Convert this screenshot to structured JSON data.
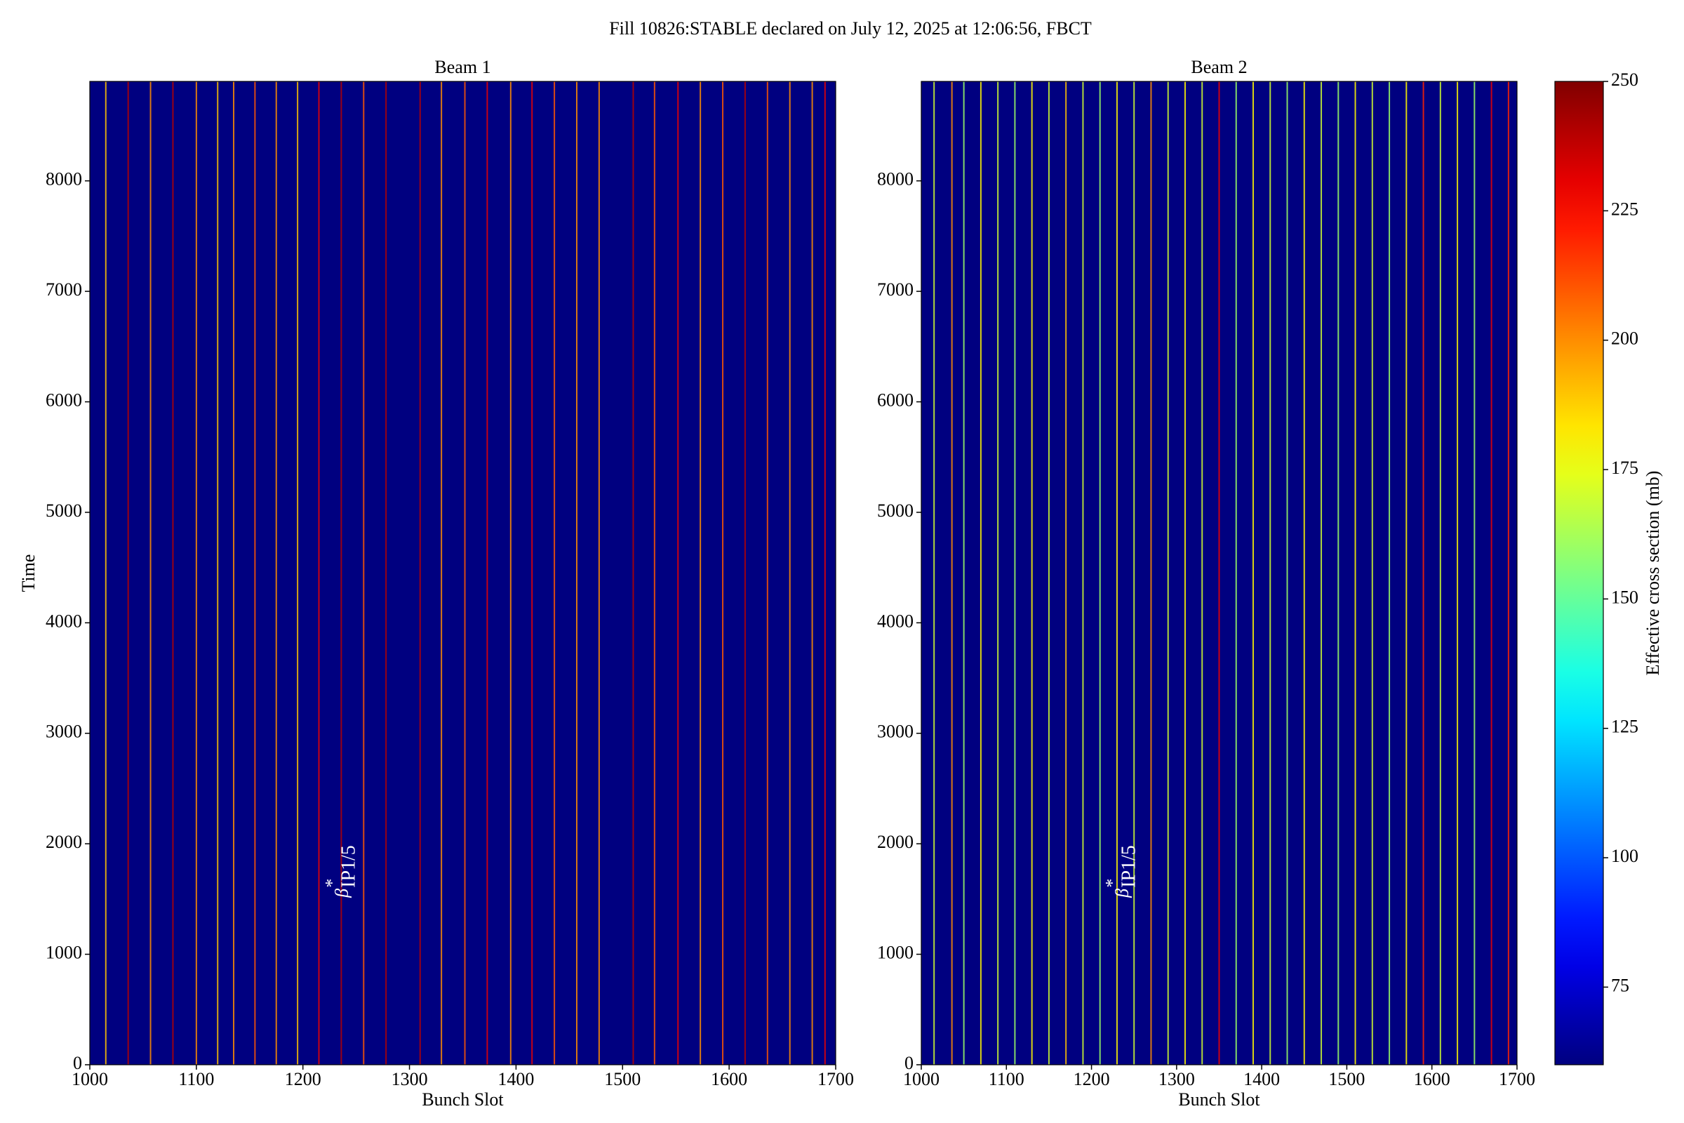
{
  "title": "Fill 10826:STABLE declared on July 12, 2025 at 12:06:56, FBCT",
  "colorbar": {
    "label": "Effective cross section (mb)",
    "colormap": "jet",
    "zlim": [
      60,
      250
    ],
    "ticks": [
      75,
      100,
      125,
      150,
      175,
      200,
      225,
      250
    ]
  },
  "chart_data": [
    {
      "type": "heatmap",
      "title": "Beam 1",
      "xlabel": "Bunch Slot",
      "ylabel": "Time",
      "xlim": [
        1000,
        1700
      ],
      "xticks": [
        1000,
        1100,
        1200,
        1300,
        1400,
        1500,
        1600,
        1700
      ],
      "ylim": [
        0,
        8900
      ],
      "yticks": [
        0,
        1000,
        2000,
        3000,
        4000,
        5000,
        6000,
        7000,
        8000
      ],
      "background_value": 60,
      "annotation": {
        "symbol": "β",
        "sup": "*",
        "sub": "IP1/5"
      },
      "x": [
        1015,
        1036,
        1057,
        1078,
        1100,
        1120,
        1135,
        1155,
        1175,
        1195,
        1215,
        1236,
        1257,
        1278,
        1310,
        1330,
        1352,
        1373,
        1395,
        1415,
        1436,
        1457,
        1478,
        1510,
        1530,
        1552,
        1573,
        1594,
        1615,
        1636,
        1657,
        1678,
        1690
      ],
      "values": [
        190,
        240,
        200,
        240,
        200,
        190,
        200,
        210,
        200,
        190,
        230,
        240,
        210,
        240,
        240,
        200,
        210,
        230,
        200,
        230,
        210,
        200,
        200,
        240,
        210,
        230,
        200,
        210,
        240,
        210,
        200,
        200,
        230
      ]
    },
    {
      "type": "heatmap",
      "title": "Beam 2",
      "xlabel": "Bunch Slot",
      "xlim": [
        1000,
        1700
      ],
      "xticks": [
        1000,
        1100,
        1200,
        1300,
        1400,
        1500,
        1600,
        1700
      ],
      "ylim": [
        0,
        8900
      ],
      "yticks": [
        0,
        1000,
        2000,
        3000,
        4000,
        5000,
        6000,
        7000,
        8000
      ],
      "background_value": 60,
      "annotation": {
        "symbol": "β",
        "sup": "*",
        "sub": "IP1/5"
      },
      "x": [
        1015,
        1036,
        1050,
        1070,
        1090,
        1110,
        1130,
        1150,
        1170,
        1190,
        1210,
        1230,
        1250,
        1270,
        1290,
        1310,
        1330,
        1350,
        1370,
        1390,
        1410,
        1430,
        1450,
        1470,
        1490,
        1510,
        1530,
        1550,
        1570,
        1590,
        1610,
        1630,
        1650,
        1670,
        1690
      ],
      "values": [
        170,
        200,
        160,
        180,
        170,
        160,
        180,
        170,
        190,
        170,
        160,
        180,
        170,
        200,
        170,
        180,
        170,
        230,
        160,
        180,
        170,
        160,
        180,
        170,
        160,
        180,
        170,
        160,
        180,
        220,
        170,
        180,
        160,
        230,
        220
      ]
    }
  ]
}
